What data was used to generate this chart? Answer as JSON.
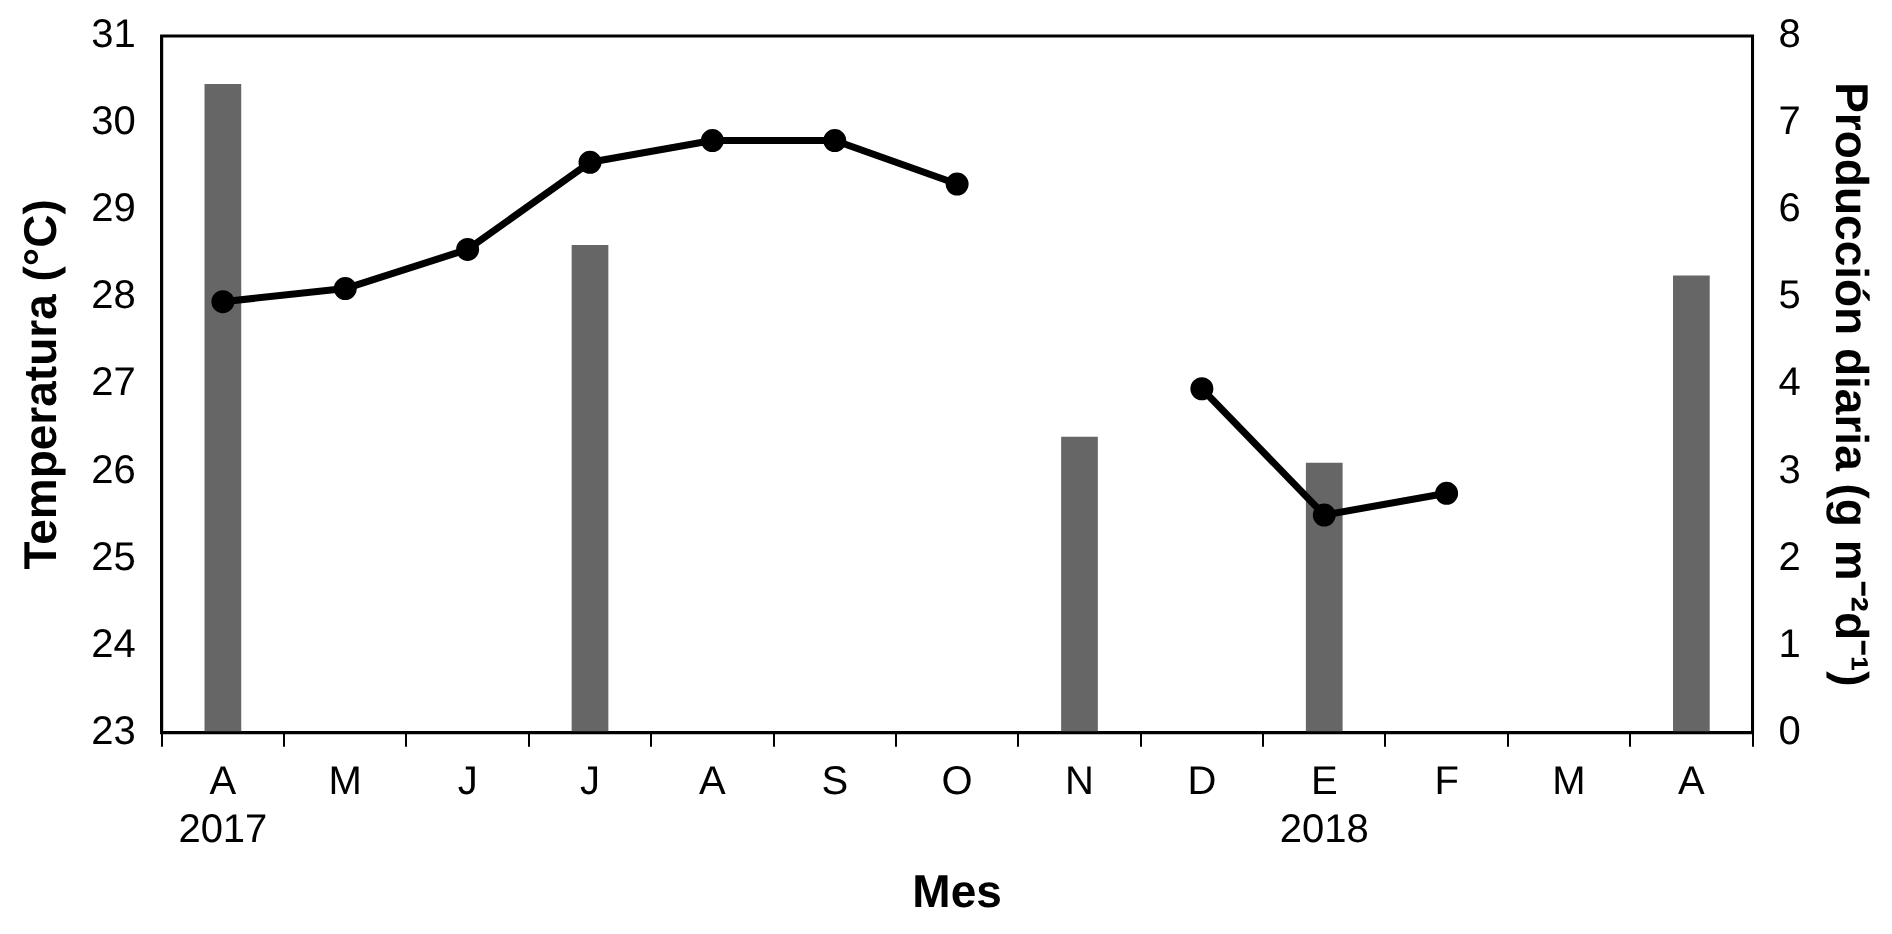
{
  "chart_data": {
    "type": "line",
    "xlabel": "Mes",
    "ylabel": "Temperatura (°C)",
    "y2label": "Producción diaria (g m⁻²d⁻¹)",
    "categories": [
      "A\n2017",
      "M",
      "J",
      "J",
      "A",
      "S",
      "O",
      "N",
      "D",
      "E\n2018",
      "F",
      "M",
      "A"
    ],
    "series": [
      {
        "type": "bar",
        "axis": "y2",
        "color": "#666666",
        "values": [
          7.45,
          null,
          null,
          5.6,
          null,
          null,
          null,
          3.4,
          null,
          3.1,
          null,
          null,
          5.25
        ]
      },
      {
        "axis": "y",
        "color": "#000000",
        "values": [
          27.95,
          28.1,
          28.55,
          29.55,
          29.8,
          29.8,
          29.3,
          null,
          26.95,
          25.5,
          25.75,
          null,
          null
        ]
      }
    ],
    "ylim": [
      23,
      31
    ],
    "yticks": [
      23,
      24,
      25,
      26,
      27,
      28,
      29,
      30,
      31
    ],
    "y2lim": [
      0,
      8
    ],
    "y2ticks": [
      0,
      1,
      2,
      3,
      4,
      5,
      6,
      7,
      8
    ],
    "grid": false,
    "legend": false,
    "marker": "circle",
    "line_style": "solid"
  }
}
